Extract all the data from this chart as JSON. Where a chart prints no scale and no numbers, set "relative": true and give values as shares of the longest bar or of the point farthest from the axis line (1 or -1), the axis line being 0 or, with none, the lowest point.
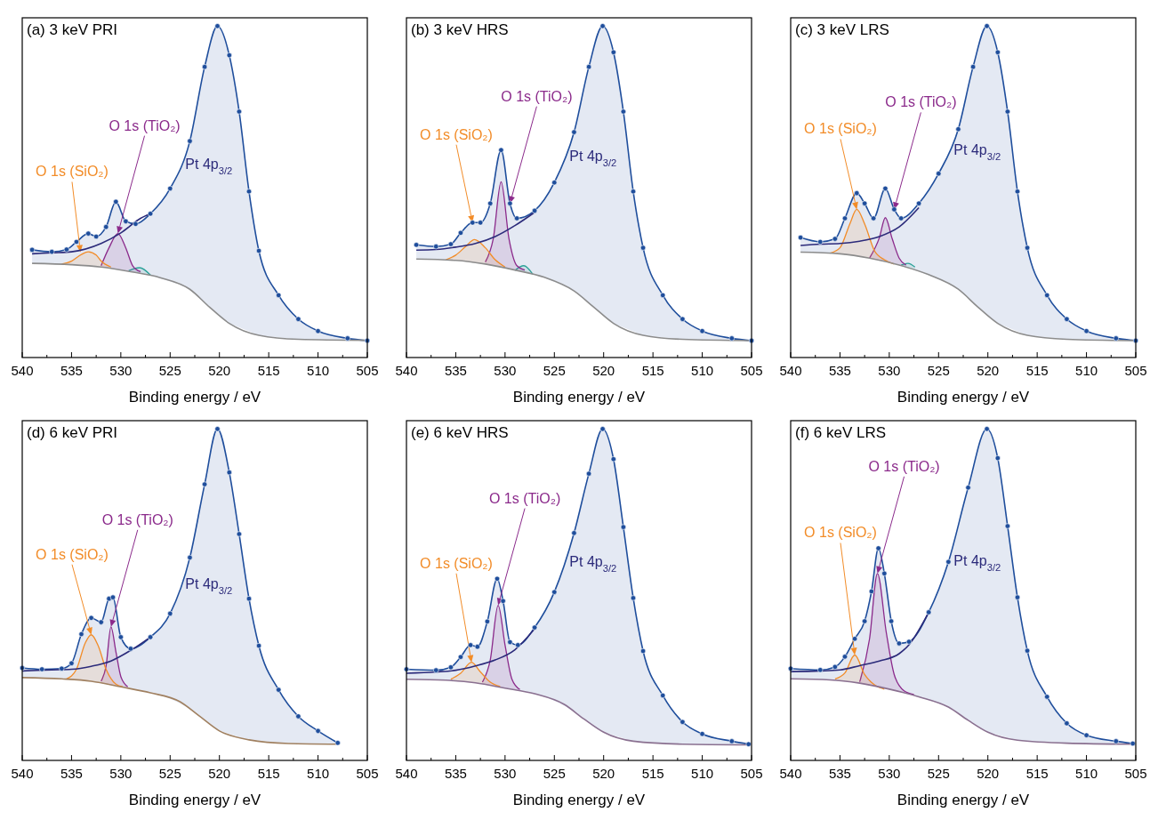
{
  "chart_data": [
    {
      "type": "line",
      "relative": true,
      "title": "(a) 3 keV PRI",
      "xlabel": "Binding energy / eV",
      "xlim": [
        540,
        505
      ],
      "xticks": [
        540,
        {
          "value": 537.5,
          "label": null
        },
        535,
        {
          "value": 532.5,
          "label": null
        },
        530,
        {
          "value": 527.5,
          "label": null
        },
        525,
        {
          "value": 522.5,
          "label": null
        },
        520,
        {
          "value": 517.5,
          "label": null
        },
        515,
        {
          "value": 512.5,
          "label": null
        },
        510,
        {
          "value": 507.5,
          "label": null
        },
        505
      ],
      "annotations": [
        {
          "text": "O 1s (SiO₂)",
          "x": 534.1,
          "y": 0.318
        },
        {
          "text": "O 1s (TiO₂)",
          "x": 530.3,
          "y": 0.374
        },
        {
          "text": "Pt 4p$_{3/2}$",
          "x": 524,
          "y": 0.58
        }
      ],
      "series": [
        {
          "color": "#8c8c8c",
          "x": [
            539,
            535,
            532,
            529,
            526,
            523,
            521,
            519,
            516,
            512,
            505
          ],
          "values": [
            0.284,
            0.28,
            0.273,
            0.259,
            0.241,
            0.206,
            0.152,
            0.103,
            0.067,
            0.055,
            0.052
          ]
        },
        {
          "type": "area",
          "color": "#f28c28",
          "x": [
            536,
            535,
            534,
            533.3,
            532.5,
            532,
            531
          ],
          "values": [
            0.282,
            0.291,
            0.311,
            0.319,
            0.309,
            0.291,
            0.273
          ]
        },
        {
          "type": "area",
          "color": "#8b2a8b",
          "x": [
            532,
            531.2,
            530.3,
            529.5,
            528.8,
            528
          ],
          "values": [
            0.277,
            0.331,
            0.374,
            0.331,
            0.277,
            0.259
          ]
        },
        {
          "color": "#2b2a7a",
          "x": [
            539,
            537,
            535,
            532,
            530,
            528,
            527
          ],
          "values": [
            0.313,
            0.316,
            0.319,
            0.344,
            0.376,
            0.42,
            0.434
          ]
        },
        {
          "type": "area",
          "color": "#2aa198",
          "x": [
            529.2,
            528.1,
            527
          ],
          "values": [
            0.262,
            0.271,
            0.249
          ]
        },
        {
          "type": "area",
          "color": "#1f4e9c",
          "marker": "circle",
          "x": [
            539,
            537,
            535.5,
            534.5,
            533.3,
            532.5,
            531.5,
            530.5,
            529.5,
            528.5,
            527,
            525,
            523,
            521.5,
            520.2,
            519,
            518,
            517,
            516,
            514,
            512,
            510,
            507,
            505
          ],
          "values": [
            0.325,
            0.319,
            0.326,
            0.349,
            0.374,
            0.365,
            0.394,
            0.47,
            0.411,
            0.403,
            0.434,
            0.51,
            0.653,
            0.877,
            1,
            0.912,
            0.742,
            0.501,
            0.322,
            0.188,
            0.116,
            0.08,
            0.058,
            0.051
          ]
        }
      ]
    },
    {
      "type": "line",
      "relative": true,
      "title": "(b) 3 keV HRS",
      "xlabel": "Binding energy / eV",
      "xlim": [
        540,
        505
      ],
      "xticks": [
        540,
        {
          "value": 537.5,
          "label": null
        },
        535,
        {
          "value": 532.5,
          "label": null
        },
        530,
        {
          "value": 527.5,
          "label": null
        },
        525,
        {
          "value": 522.5,
          "label": null
        },
        520,
        {
          "value": 517.5,
          "label": null
        },
        515,
        {
          "value": 512.5,
          "label": null
        },
        510,
        {
          "value": 507.5,
          "label": null
        },
        505
      ],
      "annotations": [
        {
          "text": "O 1s (SiO₂)",
          "x": 533.3,
          "y": 0.407
        },
        {
          "text": "O 1s (TiO₂)",
          "x": 529.5,
          "y": 0.465
        },
        {
          "text": "Pt 4p$_{3/2}$",
          "x": 524,
          "y": 0.604
        }
      ],
      "series": [
        {
          "color": "#8c8c8c",
          "x": [
            539,
            535,
            532,
            529,
            526,
            523,
            521,
            519,
            516,
            512,
            505
          ],
          "values": [
            0.297,
            0.293,
            0.282,
            0.264,
            0.242,
            0.201,
            0.152,
            0.103,
            0.067,
            0.055,
            0.051
          ]
        },
        {
          "type": "area",
          "color": "#f28c28",
          "x": [
            536,
            535,
            534,
            533.1,
            532,
            531,
            530
          ],
          "values": [
            0.295,
            0.309,
            0.335,
            0.356,
            0.331,
            0.295,
            0.273
          ]
        },
        {
          "type": "area",
          "color": "#8b2a8b",
          "x": [
            532,
            531.2,
            530.4,
            529.6,
            528.8,
            528
          ],
          "values": [
            0.288,
            0.358,
            0.53,
            0.358,
            0.277,
            0.264
          ]
        },
        {
          "color": "#2b2a7a",
          "x": [
            539,
            537,
            535,
            533,
            531,
            529,
            527
          ],
          "values": [
            0.324,
            0.326,
            0.333,
            0.344,
            0.365,
            0.398,
            0.438
          ]
        },
        {
          "type": "area",
          "color": "#2aa198",
          "x": [
            529,
            528.1,
            527.2
          ],
          "values": [
            0.263,
            0.277,
            0.252
          ]
        },
        {
          "type": "area",
          "color": "#1f4e9c",
          "marker": "circle",
          "x": [
            539,
            537,
            535.5,
            534.5,
            533.3,
            532.5,
            531.5,
            530.4,
            529.5,
            528.8,
            527,
            525,
            523,
            521.5,
            520.1,
            519,
            518,
            517,
            516,
            514,
            512,
            510,
            507,
            505
          ],
          "values": [
            0.34,
            0.335,
            0.342,
            0.376,
            0.407,
            0.407,
            0.465,
            0.626,
            0.465,
            0.42,
            0.443,
            0.528,
            0.68,
            0.877,
            1,
            0.921,
            0.742,
            0.501,
            0.331,
            0.188,
            0.116,
            0.08,
            0.058,
            0.051
          ]
        }
      ]
    },
    {
      "type": "line",
      "relative": true,
      "title": "(c) 3 keV LRS",
      "xlabel": "Binding energy / eV",
      "xlim": [
        540,
        505
      ],
      "xticks": [
        540,
        {
          "value": 537.5,
          "label": null
        },
        535,
        {
          "value": 532.5,
          "label": null
        },
        530,
        {
          "value": 527.5,
          "label": null
        },
        525,
        {
          "value": 522.5,
          "label": null
        },
        520,
        {
          "value": 517.5,
          "label": null
        },
        515,
        {
          "value": 512.5,
          "label": null
        },
        510,
        {
          "value": 507.5,
          "label": null
        },
        505
      ],
      "annotations": [
        {
          "text": "O 1s (SiO₂)",
          "x": 533.3,
          "y": 0.447
        },
        {
          "text": "O 1s (TiO₂)",
          "x": 529.5,
          "y": 0.447
        },
        {
          "text": "Pt 4p$_{3/2}$",
          "x": 524,
          "y": 0.622
        }
      ],
      "series": [
        {
          "color": "#8c8c8c",
          "x": [
            539,
            535,
            532,
            529,
            526,
            523,
            521,
            519,
            516,
            512,
            505
          ],
          "values": [
            0.318,
            0.313,
            0.3,
            0.279,
            0.25,
            0.206,
            0.152,
            0.103,
            0.067,
            0.055,
            0.051
          ]
        },
        {
          "type": "area",
          "color": "#f28c28",
          "x": [
            536,
            535,
            534,
            533.3,
            532.5,
            531.5,
            530.5,
            529.5
          ],
          "values": [
            0.315,
            0.331,
            0.403,
            0.447,
            0.403,
            0.322,
            0.295,
            0.282
          ]
        },
        {
          "type": "area",
          "color": "#8b2a8b",
          "x": [
            532,
            531,
            530.4,
            529.7,
            529,
            528.3
          ],
          "values": [
            0.3,
            0.362,
            0.422,
            0.358,
            0.3,
            0.279
          ]
        },
        {
          "color": "#2b2a7a",
          "x": [
            539,
            537,
            535,
            533,
            531,
            529,
            527
          ],
          "values": [
            0.338,
            0.342,
            0.344,
            0.351,
            0.365,
            0.394,
            0.452
          ]
        },
        {
          "type": "area",
          "color": "#2aa198",
          "x": [
            528.8,
            528.1,
            527.4
          ],
          "values": [
            0.279,
            0.284,
            0.273
          ]
        },
        {
          "type": "area",
          "color": "#1f4e9c",
          "marker": "circle",
          "x": [
            539,
            537,
            535.5,
            534.5,
            533.3,
            532.5,
            531.6,
            530.4,
            529.5,
            528.8,
            527,
            525,
            523,
            521.5,
            520.1,
            519,
            518,
            517,
            516,
            514,
            512,
            510,
            507,
            505
          ],
          "values": [
            0.362,
            0.349,
            0.358,
            0.42,
            0.496,
            0.465,
            0.42,
            0.51,
            0.447,
            0.42,
            0.465,
            0.555,
            0.689,
            0.877,
            1,
            0.921,
            0.742,
            0.501,
            0.331,
            0.188,
            0.116,
            0.08,
            0.058,
            0.051
          ]
        }
      ]
    },
    {
      "type": "line",
      "relative": true,
      "title": "(d) 6 keV PRI",
      "xlabel": "Binding energy / eV",
      "xlim": [
        540,
        505
      ],
      "xticks": [
        540,
        {
          "value": 537.5,
          "label": null
        },
        535,
        {
          "value": 532.5,
          "label": null
        },
        530,
        {
          "value": 527.5,
          "label": null
        },
        525,
        {
          "value": 522.5,
          "label": null
        },
        520,
        {
          "value": 517.5,
          "label": null
        },
        515,
        {
          "value": 512.5,
          "label": null
        },
        510,
        {
          "value": 507.5,
          "label": null
        },
        505
      ],
      "annotations": [
        {
          "text": "O 1s (SiO₂)",
          "x": 533,
          "y": 0.379
        },
        {
          "text": "O 1s (TiO₂)",
          "x": 531,
          "y": 0.403
        },
        {
          "text": "Pt 4p$_{3/2}$",
          "x": 524,
          "y": 0.528
        }
      ],
      "series": [
        {
          "color": "#a08060",
          "x": [
            540,
            536,
            533,
            530,
            527,
            524,
            522,
            520,
            517,
            513,
            508
          ],
          "values": [
            0.25,
            0.246,
            0.239,
            0.222,
            0.204,
            0.177,
            0.133,
            0.089,
            0.062,
            0.051,
            0.049
          ]
        },
        {
          "type": "area",
          "color": "#f28c28",
          "x": [
            535.5,
            534.5,
            533.6,
            533,
            532.3,
            531.5,
            530.5,
            529.8
          ],
          "values": [
            0.246,
            0.275,
            0.355,
            0.379,
            0.346,
            0.275,
            0.23,
            0.222
          ]
        },
        {
          "type": "area",
          "color": "#8b2a8b",
          "x": [
            532,
            531.5,
            531,
            530.5,
            530,
            529.3
          ],
          "values": [
            0.239,
            0.284,
            0.403,
            0.328,
            0.253,
            0.222
          ]
        },
        {
          "color": "#2b2a7a",
          "x": [
            540,
            537,
            535,
            533,
            531,
            529,
            527
          ],
          "values": [
            0.27,
            0.273,
            0.275,
            0.284,
            0.3,
            0.332,
            0.372
          ]
        },
        {
          "type": "area",
          "color": "#1f4e9c",
          "marker": "circle",
          "x": [
            540,
            538,
            536,
            535,
            534,
            533,
            532,
            531.2,
            530.8,
            530,
            529,
            527,
            525,
            523,
            521.5,
            520.2,
            519,
            518,
            517,
            516,
            514,
            512,
            510,
            508
          ],
          "values": [
            0.279,
            0.275,
            0.277,
            0.293,
            0.381,
            0.43,
            0.417,
            0.488,
            0.492,
            0.372,
            0.337,
            0.372,
            0.443,
            0.612,
            0.833,
            1,
            0.869,
            0.683,
            0.488,
            0.346,
            0.213,
            0.133,
            0.089,
            0.053
          ]
        }
      ]
    },
    {
      "type": "line",
      "relative": true,
      "title": "(e) 6 keV HRS",
      "xlabel": "Binding energy / eV",
      "xlim": [
        540,
        505
      ],
      "xticks": [
        540,
        {
          "value": 537.5,
          "label": null
        },
        535,
        {
          "value": 532.5,
          "label": null
        },
        530,
        {
          "value": 527.5,
          "label": null
        },
        525,
        {
          "value": 522.5,
          "label": null
        },
        520,
        {
          "value": 517.5,
          "label": null
        },
        515,
        {
          "value": 512.5,
          "label": null
        },
        510,
        {
          "value": 507.5,
          "label": null
        },
        505
      ],
      "annotations": [
        {
          "text": "O 1s (SiO₂)",
          "x": 533.4,
          "y": 0.296
        },
        {
          "text": "O 1s (TiO₂)",
          "x": 530.7,
          "y": 0.468
        },
        {
          "text": "Pt 4p$_{3/2}$",
          "x": 524,
          "y": 0.597
        }
      ],
      "series": [
        {
          "color": "#8a7090",
          "x": [
            540,
            536,
            533,
            530,
            527,
            524,
            522,
            520,
            517,
            512,
            505.3
          ],
          "values": [
            0.245,
            0.242,
            0.234,
            0.218,
            0.201,
            0.169,
            0.125,
            0.085,
            0.058,
            0.049,
            0.047
          ]
        },
        {
          "type": "area",
          "color": "#f28c28",
          "x": [
            535.5,
            534.5,
            533.4,
            532.5,
            531.5,
            530.5
          ],
          "values": [
            0.245,
            0.263,
            0.296,
            0.267,
            0.236,
            0.223
          ]
        },
        {
          "type": "area",
          "color": "#8b2a8b",
          "x": [
            532.3,
            531.5,
            530.7,
            530,
            529.3,
            528.5
          ],
          "values": [
            0.236,
            0.303,
            0.468,
            0.348,
            0.245,
            0.214
          ]
        },
        {
          "color": "#2b2a7a",
          "x": [
            540,
            537,
            535,
            533,
            531,
            529,
            527
          ],
          "values": [
            0.263,
            0.267,
            0.272,
            0.285,
            0.303,
            0.334,
            0.397
          ]
        },
        {
          "type": "area",
          "color": "#1f4e9c",
          "marker": "circle",
          "x": [
            540,
            537,
            535.5,
            534.5,
            533.5,
            532.8,
            531.8,
            530.8,
            530.2,
            529.5,
            528.7,
            527,
            525,
            523,
            521.5,
            520.1,
            519,
            518,
            517,
            516,
            514,
            512,
            510,
            507,
            505.3
          ],
          "values": [
            0.275,
            0.272,
            0.281,
            0.312,
            0.348,
            0.343,
            0.419,
            0.548,
            0.481,
            0.357,
            0.348,
            0.401,
            0.508,
            0.686,
            0.865,
            1,
            0.909,
            0.704,
            0.49,
            0.33,
            0.196,
            0.116,
            0.08,
            0.058,
            0.049
          ]
        }
      ]
    },
    {
      "type": "line",
      "relative": true,
      "title": "(f) 6 keV LRS",
      "xlabel": "Binding energy / eV",
      "xlim": [
        540,
        505
      ],
      "xticks": [
        540,
        {
          "value": 537.5,
          "label": null
        },
        535,
        {
          "value": 532.5,
          "label": null
        },
        530,
        {
          "value": 527.5,
          "label": null
        },
        525,
        {
          "value": 522.5,
          "label": null
        },
        520,
        {
          "value": 517.5,
          "label": null
        },
        515,
        {
          "value": 512.5,
          "label": null
        },
        510,
        {
          "value": 507.5,
          "label": null
        },
        505
      ],
      "annotations": [
        {
          "text": "O 1s (SiO₂)",
          "x": 533.5,
          "y": 0.318
        },
        {
          "text": "O 1s (TiO₂)",
          "x": 531.2,
          "y": 0.564
        },
        {
          "text": "Pt 4p$_{3/2}$",
          "x": 524,
          "y": 0.599
        }
      ],
      "series": [
        {
          "color": "#8a7090",
          "x": [
            540,
            536,
            533,
            530,
            527,
            524,
            522,
            520,
            517,
            512,
            505.3
          ],
          "values": [
            0.246,
            0.243,
            0.233,
            0.215,
            0.192,
            0.161,
            0.121,
            0.085,
            0.061,
            0.052,
            0.049
          ]
        },
        {
          "type": "area",
          "color": "#f28c28",
          "x": [
            535.5,
            534.5,
            533.5,
            532.5,
            531.5,
            530.5
          ],
          "values": [
            0.246,
            0.264,
            0.318,
            0.259,
            0.228,
            0.215
          ]
        },
        {
          "type": "area",
          "color": "#8b2a8b",
          "x": [
            533,
            532,
            531.2,
            530.3,
            529.5,
            528.5,
            527.5
          ],
          "values": [
            0.237,
            0.367,
            0.564,
            0.385,
            0.259,
            0.21,
            0.199
          ]
        },
        {
          "color": "#2b2a7a",
          "x": [
            540,
            537,
            535,
            533,
            531,
            529,
            528,
            526
          ],
          "values": [
            0.268,
            0.27,
            0.273,
            0.286,
            0.3,
            0.322,
            0.349,
            0.447
          ]
        },
        {
          "type": "area",
          "color": "#1f4e9c",
          "marker": "circle",
          "x": [
            540,
            537,
            535.5,
            534.5,
            533.5,
            532.5,
            531.8,
            531.1,
            530.5,
            529.8,
            529,
            528,
            526,
            524,
            522,
            520.1,
            519,
            518,
            517,
            516,
            514,
            512,
            510,
            507,
            505.3
          ],
          "values": [
            0.277,
            0.273,
            0.282,
            0.313,
            0.367,
            0.42,
            0.51,
            0.64,
            0.564,
            0.42,
            0.353,
            0.358,
            0.447,
            0.599,
            0.823,
            1,
            0.912,
            0.707,
            0.492,
            0.331,
            0.192,
            0.112,
            0.076,
            0.058,
            0.051
          ]
        }
      ]
    }
  ]
}
